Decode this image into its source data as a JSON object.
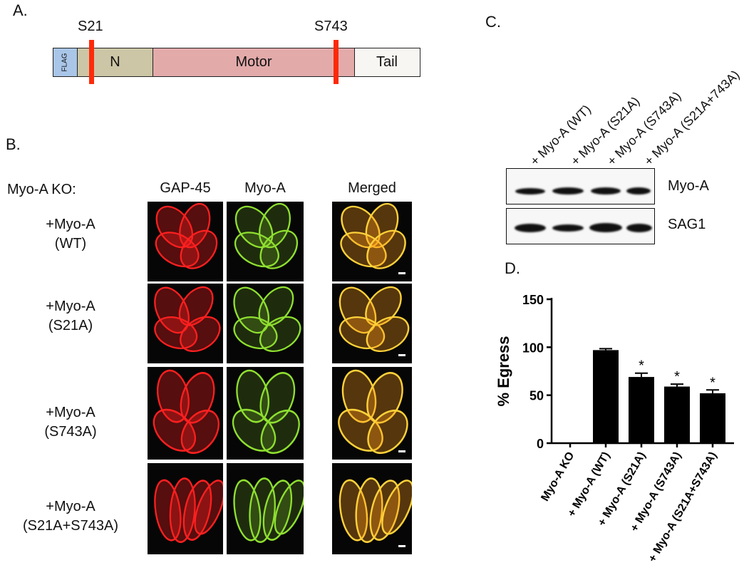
{
  "panel_a": {
    "label": "A.",
    "sites": [
      "S21",
      "S743"
    ],
    "segments": [
      {
        "label": "FLAG",
        "color": "#a9c6e8"
      },
      {
        "label": "N",
        "color": "#ccc6a6"
      },
      {
        "label": "Motor",
        "color": "#e3aaaa"
      },
      {
        "label": "Tail",
        "color": "#f7f6f2"
      }
    ],
    "site_color": "#ff2a0a"
  },
  "panel_b": {
    "label": "B.",
    "row_header": "Myo-A KO:",
    "columns": [
      "GAP-45",
      "Myo-A",
      "Merged"
    ],
    "rows": [
      {
        "line1": "+Myo-A",
        "line2": "(WT)"
      },
      {
        "line1": "+Myo-A",
        "line2": "(S21A)"
      },
      {
        "line1": "+Myo-A",
        "line2": "(S743A)"
      },
      {
        "line1": "+Myo-A",
        "line2": "(S21A+S743A)"
      }
    ],
    "channel_colors": [
      "#ff2020",
      "#8fe030",
      "#ff9a18"
    ]
  },
  "panel_c": {
    "label": "C.",
    "lanes": [
      "+ Myo-A (WT)",
      "+ Myo-A (S21A)",
      "+ Myo-A (S743A)",
      "+ Myo-A (S21A+743A)"
    ],
    "blots": [
      "Myo-A",
      "SAG1"
    ]
  },
  "chart_data": {
    "type": "bar",
    "title": "D.",
    "ylabel": "% Egress",
    "xlabel": "",
    "ylim": [
      0,
      150
    ],
    "yticks": [
      0,
      50,
      100,
      150
    ],
    "categories": [
      "Myo-A KO",
      "+ Myo-A (WT)",
      "+ Myo-A (S21A)",
      "+ Myo-A (S743A)",
      "+ Myo-A (S21A+S743A)"
    ],
    "values": [
      0,
      97,
      69,
      59,
      52
    ],
    "errors": [
      0,
      1.5,
      4,
      2.5,
      3.5
    ],
    "significance": [
      "",
      "",
      "*",
      "*",
      "*"
    ],
    "bar_color": "#000000",
    "grid": false
  }
}
